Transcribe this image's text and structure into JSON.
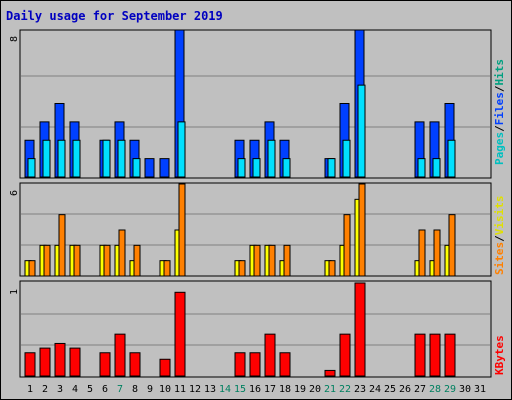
{
  "chart_data": {
    "type": "bar",
    "title": "Daily usage for September 2019",
    "days": [
      "1",
      "2",
      "3",
      "4",
      "5",
      "6",
      "7",
      "8",
      "9",
      "10",
      "11",
      "12",
      "13",
      "14",
      "15",
      "16",
      "17",
      "18",
      "19",
      "20",
      "21",
      "22",
      "23",
      "24",
      "25",
      "26",
      "27",
      "28",
      "29",
      "30",
      "31"
    ],
    "weekend_days": [
      7,
      14,
      15,
      21,
      22,
      28,
      29
    ],
    "panels": [
      {
        "id": "top",
        "ymax": 8,
        "ymax_label": "8",
        "legend": [
          "Pages",
          "Files",
          "Hits"
        ],
        "series": [
          {
            "name": "Hits",
            "color": "#0040ff",
            "values": [
              2,
              3,
              4,
              3,
              0,
              2,
              3,
              2,
              1,
              1,
              8,
              0,
              0,
              0,
              2,
              2,
              3,
              2,
              0,
              0,
              1,
              4,
              8,
              0,
              0,
              0,
              3,
              3,
              4,
              0,
              0
            ]
          },
          {
            "name": "Files",
            "color": "#00e0ff",
            "values": [
              1,
              2,
              2,
              2,
              0,
              2,
              2,
              1,
              0,
              0,
              3,
              0,
              0,
              0,
              1,
              1,
              2,
              1,
              0,
              0,
              1,
              2,
              5,
              0,
              0,
              0,
              1,
              1,
              2,
              0,
              0
            ]
          },
          {
            "name": "Pages",
            "color": "#00c090",
            "values": [
              2,
              3,
              4,
              3,
              0,
              2,
              3,
              2,
              1,
              1,
              8,
              0,
              0,
              0,
              2,
              2,
              3,
              2,
              0,
              0,
              1,
              4,
              8,
              0,
              0,
              0,
              3,
              3,
              4,
              0,
              0
            ]
          }
        ]
      },
      {
        "id": "middle",
        "ymax": 6,
        "ymax_label": "6",
        "legend": [
          "Sites",
          "Visits"
        ],
        "series": [
          {
            "name": "Visits",
            "color": "#ffff00",
            "values": [
              1,
              2,
              2,
              2,
              0,
              2,
              2,
              1,
              0,
              1,
              3,
              0,
              0,
              0,
              1,
              2,
              2,
              1,
              0,
              0,
              1,
              2,
              5,
              0,
              0,
              0,
              1,
              1,
              2,
              0,
              0
            ]
          },
          {
            "name": "Sites",
            "color": "#ff8000",
            "values": [
              1,
              2,
              4,
              2,
              0,
              2,
              3,
              2,
              0,
              1,
              6,
              0,
              0,
              0,
              1,
              2,
              2,
              2,
              0,
              0,
              1,
              4,
              6,
              0,
              0,
              0,
              3,
              3,
              4,
              0,
              0
            ]
          }
        ]
      },
      {
        "id": "bottom",
        "ymax": 1,
        "ymax_label": "1",
        "legend": [
          "KBytes"
        ],
        "series": [
          {
            "name": "KBytes",
            "color": "#ff0000",
            "values": [
              0.25,
              0.3,
              0.35,
              0.3,
              0,
              0.25,
              0.45,
              0.25,
              0,
              0.18,
              0.9,
              0,
              0,
              0,
              0.25,
              0.25,
              0.45,
              0.25,
              0,
              0,
              0.06,
              0.45,
              1.0,
              0,
              0,
              0,
              0.45,
              0.45,
              0.45,
              0,
              0
            ]
          }
        ]
      }
    ]
  }
}
